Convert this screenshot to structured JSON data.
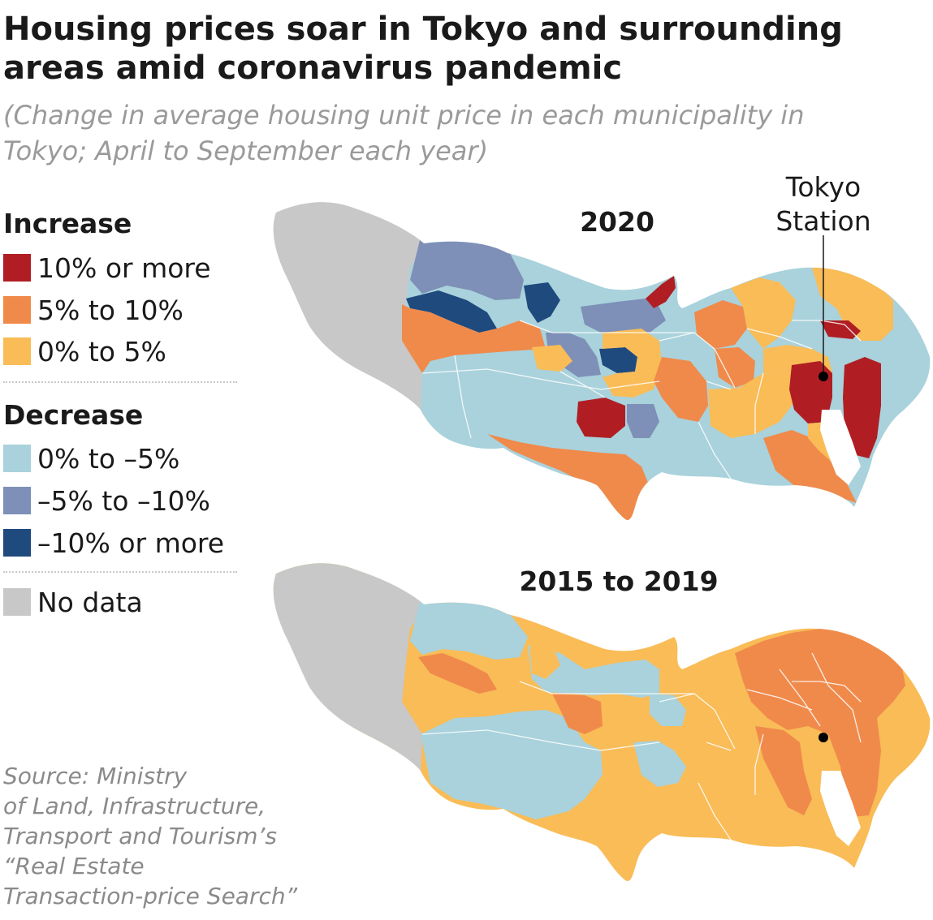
{
  "title": "Housing prices soar in Tokyo and surrounding areas amid coronavirus pandemic",
  "subtitle": "(Change in average housing unit price in each municipality in Tokyo; April to September each year)",
  "legend": {
    "increase_heading": "Increase",
    "decrease_heading": "Decrease",
    "items": [
      {
        "label": "10% or more",
        "color": "#b01e23"
      },
      {
        "label": "5% to 10%",
        "color": "#f08a4b"
      },
      {
        "label": "0% to 5%",
        "color": "#f9bc57"
      },
      {
        "label": "0% to –5%",
        "color": "#a9d2dc"
      },
      {
        "label": "–5% to –10%",
        "color": "#7e90b7"
      },
      {
        "label": "–10% or more",
        "color": "#1f4a7e"
      },
      {
        "label": "No data",
        "color": "#c8c8c8"
      }
    ]
  },
  "maps": [
    {
      "title": "2020"
    },
    {
      "title": "2015 to 2019"
    }
  ],
  "station_label_line1": "Tokyo",
  "station_label_line2": "Station",
  "source": "Source: Ministry of Land, Infrastructure, Transport and Tourism’s “Real Estate Transaction-price Search”",
  "source_lines": [
    "Source: Ministry",
    "of Land, Infrastructure,",
    "Transport and Tourism’s",
    "“Real Estate",
    "Transaction-price Search”"
  ]
}
